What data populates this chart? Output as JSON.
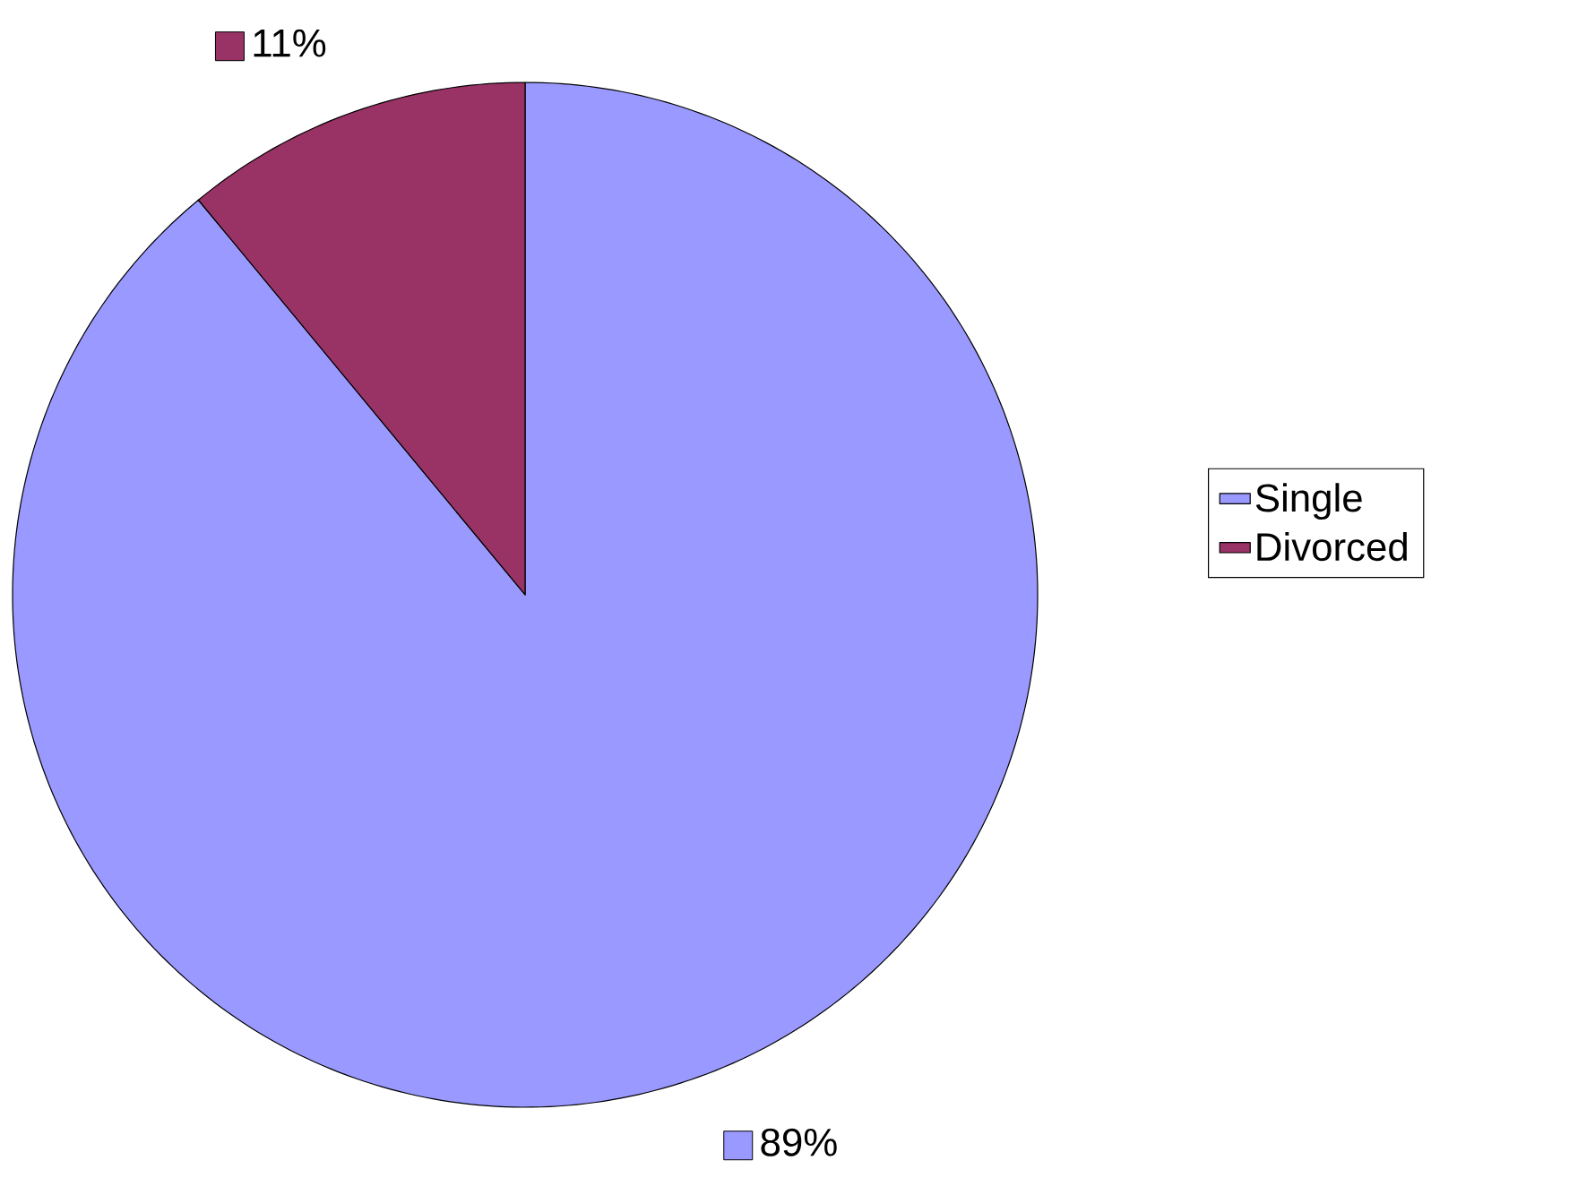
{
  "chart_data": {
    "type": "pie",
    "categories": [
      "Single",
      "Divorced"
    ],
    "values": [
      89,
      11
    ],
    "colors": [
      "#9999ff",
      "#993366"
    ],
    "value_labels": [
      "89%",
      "11%"
    ],
    "legend": "right"
  }
}
